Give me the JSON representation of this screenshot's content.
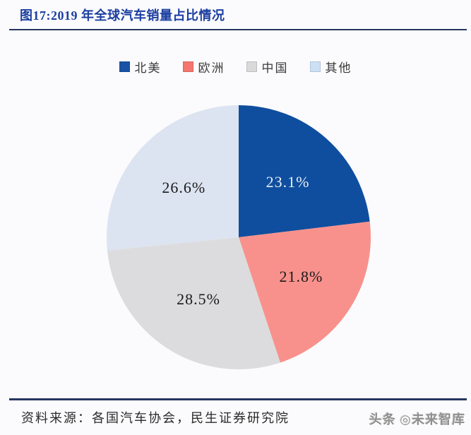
{
  "figure": {
    "title": "图17:2019 年全球汽车销量占比情况",
    "source_note": "资料来源：各国汽车协会，民生证券研究院",
    "watermark": "头条 ◎未来智库"
  },
  "legend": [
    {
      "label": "北美",
      "color": "#1a52a5"
    },
    {
      "label": "欧洲",
      "color": "#f4766f"
    },
    {
      "label": "中国",
      "color": "#d9d9d9"
    },
    {
      "label": "其他",
      "color": "#cce0f5"
    }
  ],
  "chart_data": {
    "type": "pie",
    "title": "2019 年全球汽车销量占比情况",
    "labels": [
      "北美",
      "欧洲",
      "中国",
      "其他"
    ],
    "values": [
      23.1,
      21.8,
      28.5,
      26.6
    ],
    "value_labels": [
      "23.1%",
      "21.8%",
      "28.5%",
      "26.6%"
    ],
    "slice_colors": [
      "#0f4e9e",
      "#f8918c",
      "#dcdcde",
      "#dce4f1"
    ],
    "label_text_colors": [
      "#e8eef6",
      "#1a1a1a",
      "#1a1a1a",
      "#1a1a1a"
    ],
    "start_angle_deg_from_top": 0,
    "direction": "clockwise",
    "legend_position": "top",
    "label_radius_fraction": 0.56
  },
  "colors": {
    "title": "#1b3ea0",
    "rule": "#26365e",
    "background": "#fbfbfd",
    "legend_text": "#3a3a3a",
    "source_text": "#2a2a2a",
    "watermark_text": "#8f8f8f"
  }
}
